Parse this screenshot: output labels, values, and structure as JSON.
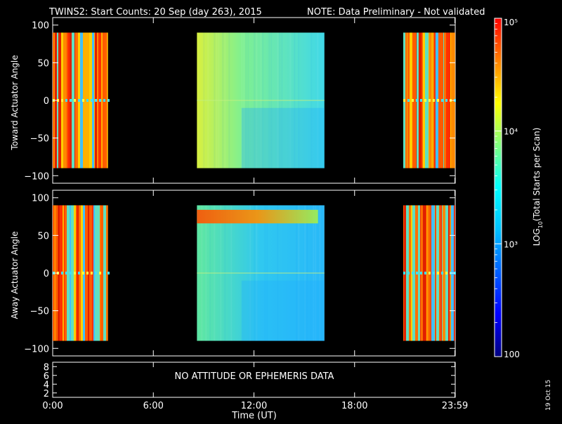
{
  "header": {
    "title": "TWINS2: Start Counts: 20 Sep (day 263), 2015",
    "note": "NOTE: Data Preliminary - Not validated",
    "note_color": "#ff2020"
  },
  "side_date": "19 Oct 15",
  "chart_data": [
    {
      "type": "heatmap",
      "panel": "top",
      "ylabel": "Toward Actuator Angle",
      "ylim": [
        -110,
        110
      ],
      "y_ticks": [
        "100",
        "50",
        "0",
        "−50",
        "−100"
      ],
      "data_y_range": [
        -90,
        90
      ],
      "xlim": [
        0,
        24
      ],
      "coverage_hours": [
        [
          0,
          3.3
        ],
        [
          8.6,
          16.2
        ],
        [
          20.9,
          23.99
        ]
      ],
      "grid": false
    },
    {
      "type": "heatmap",
      "panel": "middle",
      "ylabel": "Away Actuator Angle",
      "ylim": [
        -110,
        110
      ],
      "y_ticks": [
        "100",
        "50",
        "0",
        "−50",
        "−100"
      ],
      "data_y_range": [
        -90,
        90
      ],
      "xlim": [
        0,
        24
      ],
      "coverage_hours": [
        [
          0,
          3.3
        ],
        [
          8.6,
          16.2
        ],
        [
          20.9,
          23.99
        ]
      ],
      "grid": false
    },
    {
      "type": "line",
      "panel": "bottom",
      "y_ticks": [
        "8",
        "6",
        "4",
        "2"
      ],
      "ylim": [
        1,
        9
      ],
      "message": "NO ATTITUDE OR EPHEMERIS DATA"
    }
  ],
  "x_axis": {
    "tick_labels": [
      "0:00",
      "6:00",
      "12:00",
      "18:00",
      "23:59"
    ],
    "tick_hours": [
      0,
      6,
      12,
      18,
      23.98
    ],
    "xlabel": "Time (UT)"
  },
  "colorbar": {
    "scale": "log",
    "label": "LOG10(Total Starts per Scan)",
    "range": [
      100,
      100000
    ],
    "tick_labels": [
      "10⁵",
      "10⁴",
      "10³",
      "100"
    ],
    "label_base": "LOG",
    "label_sub": "10",
    "label_rest": "(Total Starts per Scan)",
    "colors": [
      "#000080",
      "#0000ff",
      "#0060ff",
      "#00c0ff",
      "#00ffff",
      "#80ff80",
      "#ffff00",
      "#ff8000",
      "#ff0000"
    ]
  }
}
